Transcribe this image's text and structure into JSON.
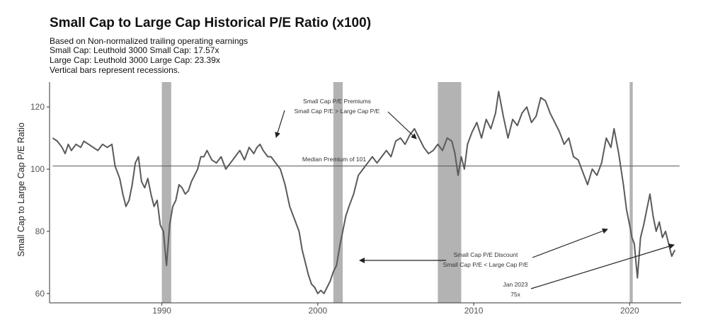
{
  "chart_data": {
    "type": "line",
    "title": "Small Cap to Large Cap Historical P/E Ratio (x100)",
    "subtitles": [
      "Based on Non-normalized trailing operating earnings",
      "Small Cap: Leuthold 3000 Small Cap: 17.57x",
      "Large Cap: Leuthold 3000 Large Cap: 23.39x",
      "Vertical bars represent recessions."
    ],
    "ylabel": "Small Cap to Large Cap P/E Ratio",
    "xlabel": "",
    "xlim": [
      1982.8,
      2023.3
    ],
    "ylim": [
      57,
      128
    ],
    "x_ticks": [
      1990,
      2000,
      2010,
      2020
    ],
    "x_tick_labels": [
      "1990",
      "2000",
      "2010",
      "2020"
    ],
    "y_ticks": [
      60,
      80,
      100,
      120
    ],
    "y_tick_labels": [
      "60",
      "80",
      "100",
      "120"
    ],
    "grid": false,
    "recessions": [
      {
        "start": 1990.0,
        "end": 1990.6
      },
      {
        "start": 2001.0,
        "end": 2001.6
      },
      {
        "start": 2007.7,
        "end": 2009.2
      },
      {
        "start": 2020.0,
        "end": 2020.2
      }
    ],
    "median_line": {
      "value": 101,
      "label": "Median Premium of 101"
    },
    "series": [
      {
        "x": [
          1983.0,
          1983.3,
          1983.6,
          1983.8,
          1984.0,
          1984.2,
          1984.5,
          1984.8,
          1985.0,
          1985.3,
          1985.6,
          1985.9,
          1986.2,
          1986.5,
          1986.8,
          1987.0,
          1987.3,
          1987.5,
          1987.7,
          1987.9,
          1988.1,
          1988.3,
          1988.5,
          1988.7,
          1988.9,
          1989.1,
          1989.3,
          1989.5,
          1989.7,
          1989.9,
          1990.1,
          1990.3,
          1990.5,
          1990.7,
          1990.9,
          1991.1,
          1991.3,
          1991.5,
          1991.7,
          1991.9,
          1992.1,
          1992.3,
          1992.5,
          1992.7,
          1992.9,
          1993.2,
          1993.5,
          1993.8,
          1994.1,
          1994.4,
          1994.7,
          1995.0,
          1995.3,
          1995.6,
          1995.9,
          1996.1,
          1996.3,
          1996.5,
          1996.8,
          1997.0,
          1997.3,
          1997.6,
          1997.9,
          1998.2,
          1998.5,
          1998.8,
          1999.0,
          1999.2,
          1999.4,
          1999.6,
          1999.8,
          2000.0,
          2000.2,
          2000.4,
          2000.6,
          2000.8,
          2001.0,
          2001.2,
          2001.4,
          2001.6,
          2001.8,
          2002.0,
          2002.3,
          2002.6,
          2002.9,
          2003.2,
          2003.5,
          2003.8,
          2004.1,
          2004.4,
          2004.7,
          2005.0,
          2005.3,
          2005.6,
          2005.9,
          2006.2,
          2006.5,
          2006.8,
          2007.1,
          2007.4,
          2007.7,
          2008.0,
          2008.3,
          2008.6,
          2008.8,
          2009.0,
          2009.2,
          2009.4,
          2009.6,
          2009.9,
          2010.2,
          2010.5,
          2010.8,
          2011.1,
          2011.4,
          2011.6,
          2011.9,
          2012.2,
          2012.5,
          2012.8,
          2013.1,
          2013.4,
          2013.7,
          2014.0,
          2014.3,
          2014.6,
          2014.9,
          2015.2,
          2015.5,
          2015.8,
          2016.1,
          2016.4,
          2016.7,
          2017.0,
          2017.3,
          2017.6,
          2017.9,
          2018.2,
          2018.5,
          2018.8,
          2019.0,
          2019.3,
          2019.6,
          2019.8,
          2020.0,
          2020.15,
          2020.3,
          2020.5,
          2020.7,
          2020.9,
          2021.1,
          2021.3,
          2021.5,
          2021.7,
          2021.9,
          2022.1,
          2022.3,
          2022.5,
          2022.7,
          2022.9
        ],
        "values": [
          110,
          109,
          107,
          105,
          108,
          106,
          108,
          107,
          109,
          108,
          107,
          106,
          108,
          107,
          108,
          101,
          97,
          92,
          88,
          90,
          95,
          102,
          104,
          96,
          94,
          97,
          92,
          88,
          90,
          82,
          80,
          69,
          82,
          88,
          90,
          95,
          94,
          92,
          93,
          96,
          98,
          100,
          104,
          104,
          106,
          103,
          102,
          104,
          100,
          102,
          104,
          106,
          103,
          107,
          105,
          107,
          108,
          106,
          104,
          104,
          102,
          100,
          95,
          88,
          84,
          80,
          74,
          70,
          66,
          63,
          62,
          60,
          61,
          60,
          62,
          64,
          67,
          69,
          75,
          80,
          85,
          88,
          92,
          98,
          100,
          102,
          104,
          102,
          104,
          106,
          104,
          109,
          110,
          108,
          111,
          113,
          110,
          107,
          105,
          106,
          108,
          106,
          110,
          109,
          105,
          98,
          104,
          100,
          108,
          112,
          115,
          110,
          116,
          113,
          118,
          125,
          117,
          110,
          116,
          114,
          118,
          120,
          115,
          117,
          123,
          122,
          118,
          115,
          112,
          108,
          110,
          104,
          103,
          99,
          95,
          100,
          98,
          102,
          110,
          107,
          113,
          105,
          95,
          87,
          82,
          78,
          76,
          65,
          78,
          82,
          87,
          92,
          85,
          80,
          83,
          78,
          80,
          76,
          72,
          74
        ]
      }
    ],
    "annotations": [
      {
        "lines": [
          "Small Cap P/E Premiums",
          "Small Cap P/E > Large Cap P/E"
        ]
      },
      {
        "lines": [
          "Small Cap P/E Discount",
          "Small Cap P/E < Large Cap P/E"
        ]
      },
      {
        "lines": [
          "Jan 2023",
          "75x"
        ]
      }
    ]
  }
}
